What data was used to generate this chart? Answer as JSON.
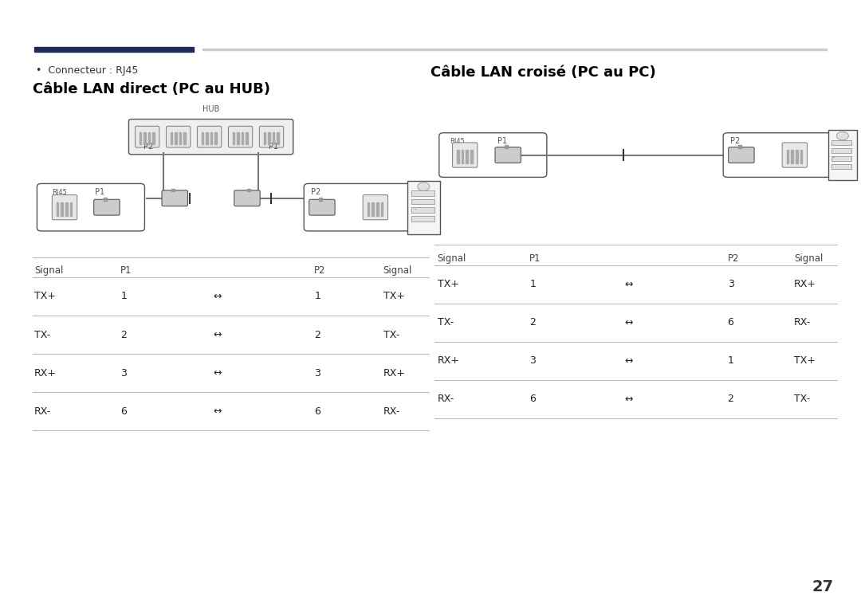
{
  "bg_color": "#ffffff",
  "dark_blue": "#1a2a5e",
  "light_gray": "#cccccc",
  "dark_gray": "#555555",
  "bullet_text": "Connecteur : RJ45",
  "section1_title": "Câble LAN direct (PC au HUB)",
  "section2_title": "Câble LAN croisé (PC au PC)",
  "page_number": "27",
  "table1_headers": [
    "Signal",
    "P1",
    "",
    "P2",
    "Signal"
  ],
  "table1_rows": [
    [
      "TX+",
      "1",
      "↔",
      "1",
      "TX+"
    ],
    [
      "TX-",
      "2",
      "↔",
      "2",
      "TX-"
    ],
    [
      "RX+",
      "3",
      "↔",
      "3",
      "RX+"
    ],
    [
      "RX-",
      "6",
      "↔",
      "6",
      "RX-"
    ]
  ],
  "table2_headers": [
    "Signal",
    "P1",
    "",
    "P2",
    "Signal"
  ],
  "table2_rows": [
    [
      "TX+",
      "1",
      "↔",
      "3",
      "RX+"
    ],
    [
      "TX-",
      "2",
      "↔",
      "6",
      "RX-"
    ],
    [
      "RX+",
      "3",
      "↔",
      "1",
      "TX+"
    ],
    [
      "RX-",
      "6",
      "↔",
      "2",
      "TX-"
    ]
  ]
}
